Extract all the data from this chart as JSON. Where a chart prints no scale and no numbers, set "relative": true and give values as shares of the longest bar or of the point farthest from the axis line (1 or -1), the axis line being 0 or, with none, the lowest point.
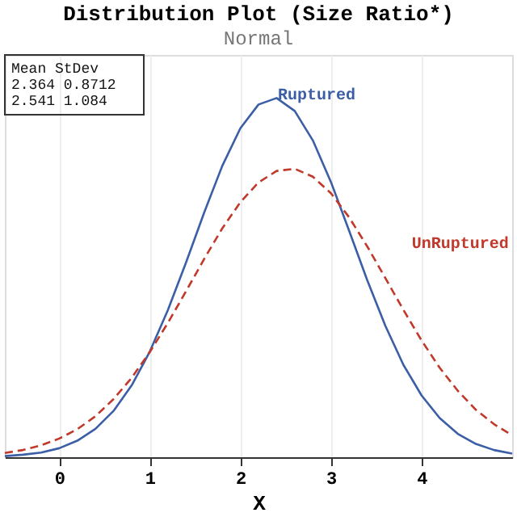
{
  "chart_data": {
    "type": "line",
    "title": "Distribution Plot (Size Ratio*)",
    "subtitle": "Normal",
    "xlabel": "X",
    "x": [
      -0.6,
      -0.4,
      -0.2,
      0,
      0.2,
      0.4,
      0.6,
      0.8,
      1.0,
      1.2,
      1.4,
      1.6,
      1.8,
      2.0,
      2.2,
      2.4,
      2.6,
      2.8,
      3.0,
      3.2,
      3.4,
      3.6,
      3.8,
      4.0,
      4.2,
      4.4,
      4.6,
      4.8,
      5.0
    ],
    "relative": true,
    "series": [
      {
        "name": "Ruptured",
        "color": "#3b5ea6",
        "line_style": "solid",
        "values": [
          0.003,
          0.007,
          0.013,
          0.025,
          0.046,
          0.079,
          0.129,
          0.2,
          0.294,
          0.41,
          0.542,
          0.681,
          0.811,
          0.916,
          0.982,
          1,
          0.964,
          0.882,
          0.766,
          0.631,
          0.493,
          0.366,
          0.257,
          0.172,
          0.109,
          0.065,
          0.037,
          0.02,
          0.01
        ]
      },
      {
        "name": "UnRuptured",
        "color": "#c0392b",
        "line_style": "dashed",
        "values": [
          0.012,
          0.02,
          0.033,
          0.052,
          0.078,
          0.114,
          0.162,
          0.221,
          0.293,
          0.374,
          0.462,
          0.552,
          0.637,
          0.71,
          0.765,
          0.797,
          0.803,
          0.781,
          0.735,
          0.668,
          0.587,
          0.499,
          0.41,
          0.325,
          0.249,
          0.185,
          0.132,
          0.092,
          0.061
        ]
      }
    ],
    "xlim": [
      -0.6,
      5.0
    ],
    "xticks": [
      0,
      1,
      2,
      3,
      4
    ],
    "grid": "x",
    "annotations": [
      "Mean  StDev\n2.364 0.8712\n2.541 1.084"
    ]
  }
}
